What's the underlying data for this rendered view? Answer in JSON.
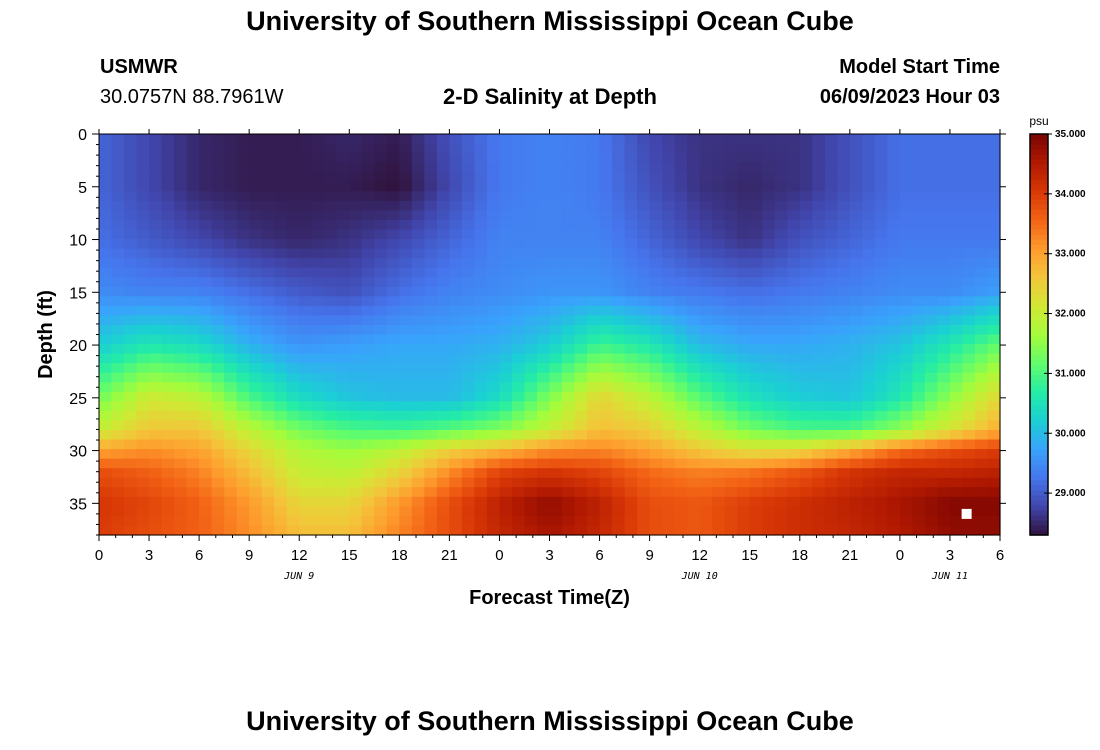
{
  "header": {
    "title": "University of Southern Mississippi Ocean Cube",
    "station": "USMWR",
    "coords": "30.0757N  88.7961W",
    "subtitle": "2-D Salinity at Depth",
    "model_start_label": "Model Start Time",
    "model_start_value": "06/09/2023 Hour 03"
  },
  "footer": {
    "title": "University of Southern Mississippi Ocean Cube"
  },
  "chart_data": {
    "type": "heatmap",
    "title": "2-D Salinity at Depth",
    "xlabel": "Forecast Time(Z)",
    "ylabel": "Depth (ft)",
    "x_ticks": [
      "0",
      "3",
      "6",
      "9",
      "12",
      "15",
      "18",
      "21",
      "0",
      "3",
      "6",
      "9",
      "12",
      "15",
      "18",
      "21",
      "0",
      "3",
      "6"
    ],
    "date_labels": [
      {
        "label": "JUN 9",
        "hour": 12
      },
      {
        "label": "JUN 10",
        "hour": 36
      },
      {
        "label": "JUN 11",
        "hour": 51
      }
    ],
    "y_ticks": [
      0,
      5,
      10,
      15,
      20,
      25,
      30,
      35
    ],
    "xlim_hours": [
      0,
      54
    ],
    "ylim_ft": [
      0,
      38
    ],
    "y_inverted": true,
    "colorbar": {
      "unit": "psu",
      "min": 28.3,
      "max": 35.0,
      "ticks": [
        "29.000",
        "30.000",
        "31.000",
        "32.000",
        "33.000",
        "34.000",
        "35.000"
      ],
      "tick_values": [
        29,
        30,
        31,
        32,
        33,
        34,
        35
      ]
    },
    "colormap": [
      "#30123b",
      "#4145ab",
      "#4675ed",
      "#39a2fc",
      "#1bcfd4",
      "#24eca6",
      "#61fc6c",
      "#a4fc3b",
      "#d1e834",
      "#f3c63a",
      "#fe9b2d",
      "#f36315",
      "#d93806",
      "#b11901",
      "#7a0402"
    ],
    "marker": {
      "hour": 52,
      "depth_ft": 36,
      "color": "#ffffff"
    },
    "salinity_grid": {
      "hours": [
        0,
        3,
        6,
        9,
        12,
        15,
        18,
        21,
        24,
        27,
        30,
        33,
        36,
        39,
        42,
        45,
        48,
        51,
        54
      ],
      "depths_ft": [
        0,
        5,
        10,
        15,
        20,
        25,
        28,
        30,
        32,
        35,
        38
      ],
      "values_psu": [
        [
          29.1,
          28.8,
          28.5,
          28.4,
          28.4,
          28.5,
          28.4,
          28.9,
          29.3,
          29.4,
          29.3,
          28.8,
          28.6,
          28.6,
          28.6,
          28.9,
          29.2,
          29.2,
          29.2
        ],
        [
          29.1,
          28.8,
          28.5,
          28.4,
          28.4,
          28.4,
          28.3,
          28.8,
          29.3,
          29.4,
          29.3,
          28.9,
          28.6,
          28.5,
          28.6,
          28.9,
          29.2,
          29.2,
          29.2
        ],
        [
          29.2,
          29.0,
          28.8,
          28.6,
          28.5,
          28.6,
          28.8,
          29.1,
          29.4,
          29.4,
          29.4,
          29.1,
          28.8,
          28.6,
          28.9,
          29.1,
          29.3,
          29.3,
          29.3
        ],
        [
          29.5,
          29.4,
          29.4,
          29.2,
          29.0,
          28.9,
          29.2,
          29.4,
          29.5,
          29.6,
          29.6,
          29.4,
          29.3,
          29.2,
          29.3,
          29.4,
          29.5,
          29.5,
          29.7
        ],
        [
          30.2,
          30.6,
          30.4,
          29.9,
          29.6,
          29.7,
          29.8,
          29.8,
          29.9,
          30.2,
          30.9,
          30.6,
          30.0,
          29.8,
          29.8,
          29.9,
          30.1,
          30.6,
          31.2
        ],
        [
          31.3,
          32.1,
          31.9,
          31.0,
          30.4,
          30.1,
          30.0,
          30.0,
          30.4,
          31.4,
          32.4,
          31.9,
          31.1,
          30.5,
          30.2,
          30.1,
          30.6,
          31.5,
          32.4
        ],
        [
          32.0,
          32.6,
          32.6,
          31.9,
          31.3,
          31.0,
          30.9,
          31.1,
          31.4,
          32.0,
          32.7,
          32.5,
          31.9,
          31.3,
          31.0,
          31.0,
          31.5,
          32.2,
          32.9
        ],
        [
          33.0,
          33.2,
          33.0,
          32.4,
          31.8,
          31.6,
          31.9,
          32.5,
          32.8,
          33.2,
          33.3,
          33.0,
          32.6,
          32.3,
          32.4,
          32.9,
          33.5,
          33.8,
          34.0
        ],
        [
          33.8,
          33.6,
          33.3,
          32.7,
          32.0,
          31.9,
          32.4,
          33.2,
          33.9,
          34.1,
          33.9,
          33.5,
          33.3,
          33.4,
          33.7,
          34.1,
          34.3,
          34.3,
          34.4
        ],
        [
          34.1,
          33.9,
          33.6,
          33.1,
          32.4,
          32.4,
          33.1,
          33.8,
          34.4,
          34.8,
          34.4,
          33.8,
          33.7,
          34.0,
          34.2,
          34.4,
          34.6,
          34.9,
          34.9
        ],
        [
          34.0,
          33.8,
          33.6,
          33.2,
          32.7,
          32.7,
          33.3,
          33.8,
          34.3,
          34.6,
          34.3,
          33.8,
          33.7,
          34.0,
          34.2,
          34.3,
          34.5,
          34.8,
          34.8
        ]
      ]
    }
  }
}
